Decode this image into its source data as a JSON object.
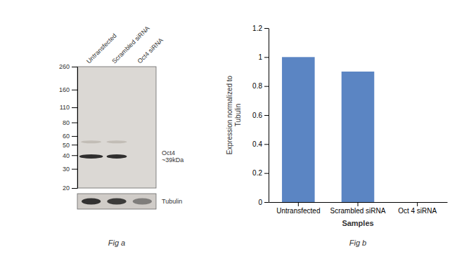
{
  "chart_data": [
    {
      "type": "blot",
      "title": "Fig a",
      "categories": [
        "Untransfected",
        "Scrambled siRNA",
        "Oct4 siRNA"
      ],
      "ylim": [
        20,
        260
      ],
      "yticks": [
        260,
        160,
        110,
        80,
        60,
        50,
        40,
        30,
        20
      ],
      "log": "y",
      "series": [
        {
          "values": [
            53,
            53,
            null
          ]
        },
        {
          "name": "Oct4\n~39kDa",
          "values": [
            39,
            39,
            null
          ]
        }
      ],
      "annotations": [
        "Tubulin"
      ]
    },
    {
      "type": "bar",
      "title": "Fig b",
      "categories": [
        "Untransfected",
        "Scrambled siRNA",
        "Oct 4 siRNA"
      ],
      "values": [
        1.0,
        0.9,
        0.0
      ],
      "color": "#5b85c3",
      "ylim": [
        0,
        1.2
      ],
      "yticks": [
        0,
        0.2,
        0.4,
        0.6,
        0.8,
        1.0,
        1.2
      ],
      "ylabel": "Expression normalized to\nTubulin",
      "xlabel": "Samples"
    }
  ]
}
